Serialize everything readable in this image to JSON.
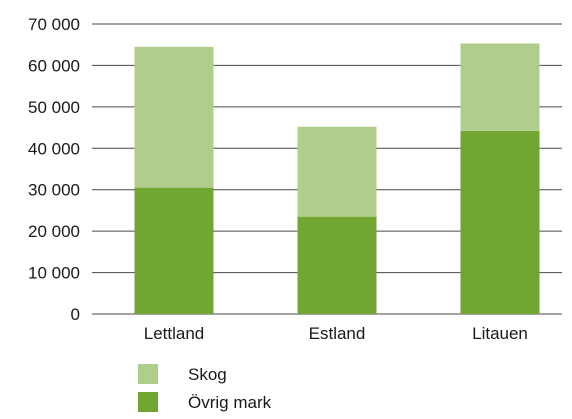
{
  "chart_data": {
    "type": "bar",
    "stacked": true,
    "categories": [
      "Lettland",
      "Estland",
      "Litauen"
    ],
    "series": [
      {
        "name": "Övrig mark",
        "color": "#72a633",
        "values": [
          30500,
          23500,
          44200
        ]
      },
      {
        "name": "Skog",
        "color": "#b0cd8e",
        "values": [
          34000,
          21700,
          21100
        ]
      }
    ],
    "ylim": [
      0,
      70000
    ],
    "yticks": [
      0,
      10000,
      20000,
      30000,
      40000,
      50000,
      60000,
      70000
    ],
    "ytick_labels": [
      "0",
      "10 000",
      "20 000",
      "30 000",
      "40 000",
      "50 000",
      "60 000",
      "70 000"
    ],
    "grid": true,
    "title": "",
    "xlabel": "",
    "ylabel": "",
    "legend": {
      "placement": "bottom",
      "entries": [
        {
          "label": "Skog",
          "color": "#b0cd8e"
        },
        {
          "label": "Övrig mark",
          "color": "#72a633"
        }
      ]
    }
  }
}
